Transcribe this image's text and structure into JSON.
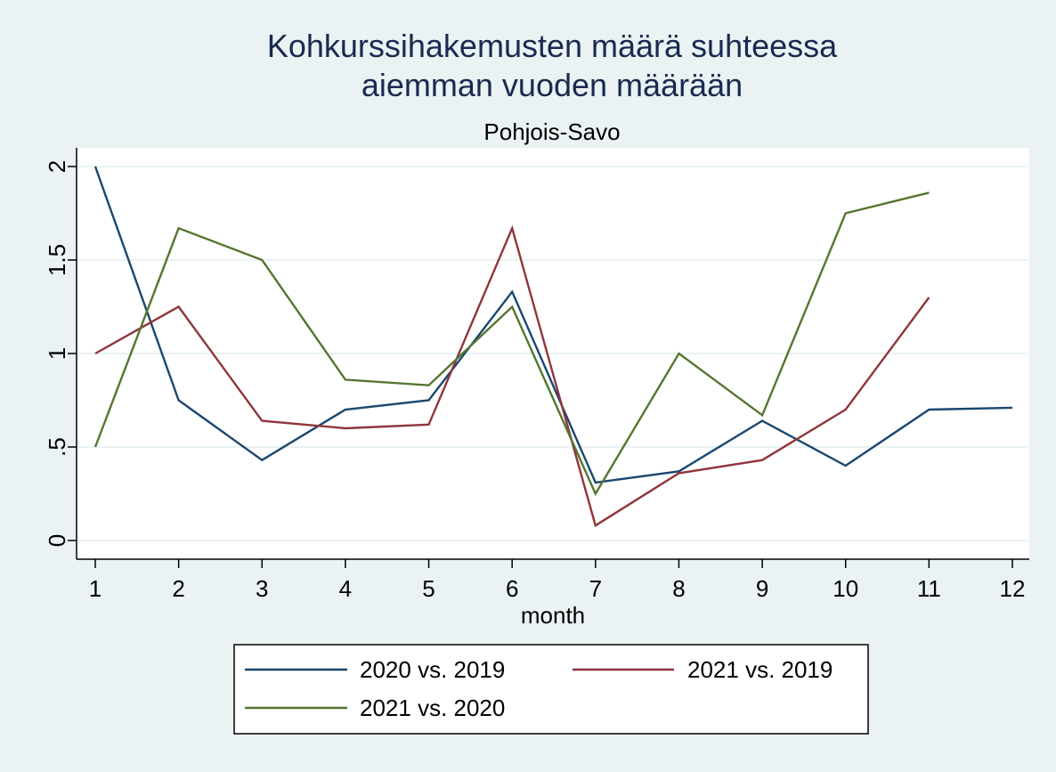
{
  "chart_data": {
    "type": "line",
    "title": "Kohkurssihakemusten määrä suhteessa aiemman vuoden määrään",
    "title_lines": [
      "Kohkurssihakemusten määrä suhteessa",
      "aiemman vuoden määrään"
    ],
    "subtitle": "Pohjois-Savo",
    "xlabel": "month",
    "ylabel": "",
    "x": [
      1,
      2,
      3,
      4,
      5,
      6,
      7,
      8,
      9,
      10,
      11,
      12
    ],
    "x_tick_labels": [
      "1",
      "2",
      "3",
      "4",
      "5",
      "6",
      "7",
      "8",
      "9",
      "10",
      "11",
      "12"
    ],
    "xlim": [
      1,
      12
    ],
    "ylim": [
      0,
      2
    ],
    "y_ticks": [
      0,
      0.5,
      1,
      1.5,
      2
    ],
    "y_tick_labels": [
      "0",
      ".5",
      "1",
      "1.5",
      "2"
    ],
    "grid": true,
    "legend_position": "bottom",
    "series": [
      {
        "name": "2020 vs. 2019",
        "color": "#1a476f",
        "values": [
          2.0,
          0.75,
          0.43,
          0.7,
          0.75,
          1.33,
          0.31,
          0.37,
          0.64,
          0.4,
          0.7,
          0.71
        ]
      },
      {
        "name": "2021 vs. 2019",
        "color": "#90353b",
        "values": [
          1.0,
          1.25,
          0.64,
          0.6,
          0.62,
          1.67,
          0.08,
          0.36,
          0.43,
          0.7,
          1.3,
          null
        ]
      },
      {
        "name": "2021 vs. 2020",
        "color": "#55752f",
        "values": [
          0.5,
          1.67,
          1.5,
          0.86,
          0.83,
          1.25,
          0.25,
          1.0,
          0.67,
          1.75,
          1.86,
          null
        ]
      }
    ]
  }
}
